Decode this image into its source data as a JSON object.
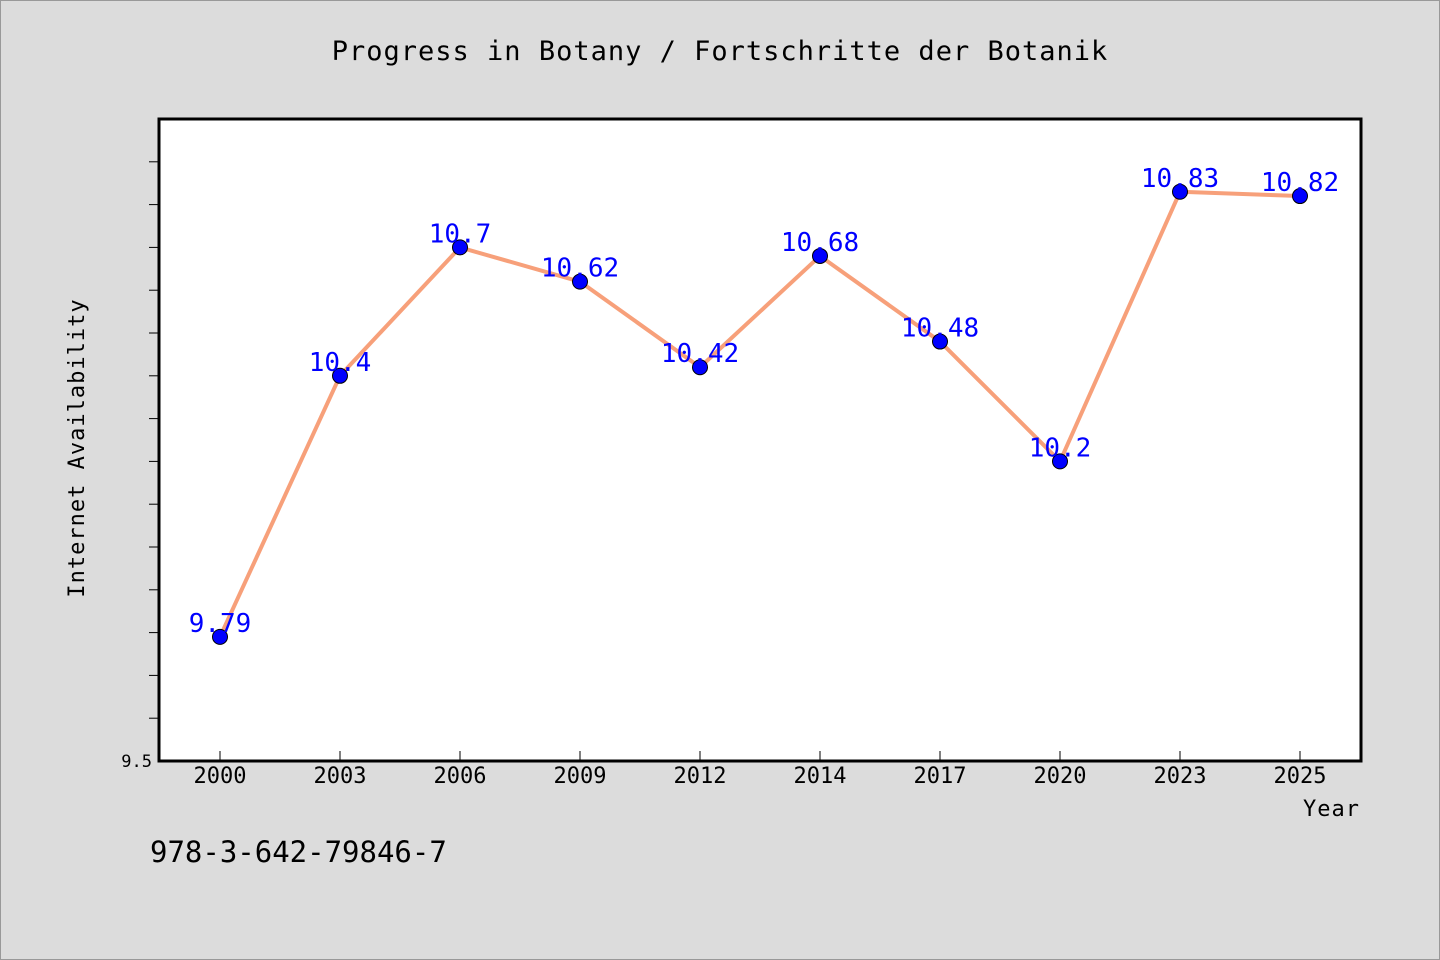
{
  "chart_data": {
    "type": "line",
    "title": "Progress in Botany / Fortschritte der Botanik",
    "xlabel": "Year",
    "ylabel": "Internet Availability",
    "categories": [
      "2000",
      "2003",
      "2006",
      "2009",
      "2012",
      "2014",
      "2017",
      "2020",
      "2023",
      "2025"
    ],
    "series": [
      {
        "values": [
          9.79,
          10.4,
          10.7,
          10.62,
          10.42,
          10.68,
          10.48,
          10.2,
          10.83,
          10.82
        ],
        "line_color": "#f7a07a",
        "marker_color": "#0000ff",
        "label_color": "#0000ff"
      }
    ],
    "ylim": [
      9.5,
      11.0
    ],
    "ytick_labels": [
      "9.5"
    ],
    "grid": false,
    "legend": "none"
  },
  "footer": {
    "isbn": "978-3-642-79846-7"
  }
}
